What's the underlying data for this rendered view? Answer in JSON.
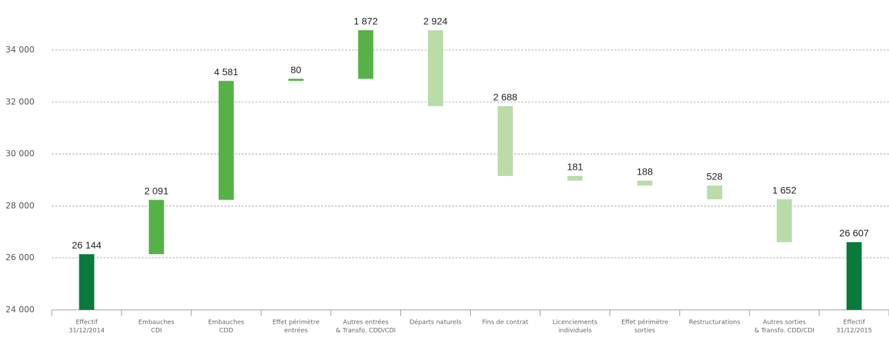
{
  "chart_data": {
    "type": "waterfall",
    "categories": [
      [
        "Effectif",
        "31/12/2014"
      ],
      [
        "Embauches",
        "CDI"
      ],
      [
        "Embauches",
        "CDD"
      ],
      [
        "Effet périmètre",
        "entrées"
      ],
      [
        "Autres entrées",
        "& Transfo. CDD/CDI"
      ],
      [
        "Départs naturels"
      ],
      [
        "Fins de contrat"
      ],
      [
        "Licenciements",
        "individuels"
      ],
      [
        "Effet périmètre",
        "sorties"
      ],
      [
        "Restructurations"
      ],
      [
        "Autres sorties",
        "& Transfo. CDD/CDI"
      ],
      [
        "Effectif",
        "31/12/2015"
      ]
    ],
    "values": [
      26144,
      2091,
      4581,
      80,
      1872,
      2924,
      2688,
      181,
      188,
      528,
      1652,
      26607
    ],
    "value_labels": [
      "26 144",
      "2 091",
      "4 581",
      "80",
      "1 872",
      "2 924",
      "2 688",
      "181",
      "188",
      "528",
      "1 652",
      "26 607"
    ],
    "measures": [
      "total",
      "increase",
      "increase",
      "increase",
      "increase",
      "decrease",
      "decrease",
      "decrease",
      "decrease",
      "decrease",
      "decrease",
      "total"
    ],
    "colors": {
      "total": "#087a3b",
      "increase": "#56b247",
      "decrease": "#b9dca8"
    },
    "ylim": [
      24000,
      35000
    ],
    "yticks": [
      {
        "value": 24000,
        "label": "24 000"
      },
      {
        "value": 26000,
        "label": "26 000"
      },
      {
        "value": 28000,
        "label": "28 000"
      },
      {
        "value": 30000,
        "label": "30 000"
      },
      {
        "value": 32000,
        "label": "32 000"
      },
      {
        "value": 34000,
        "label": "34 000"
      }
    ],
    "grid": true
  }
}
